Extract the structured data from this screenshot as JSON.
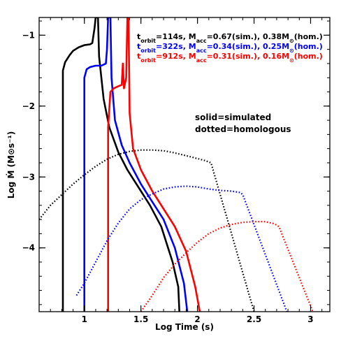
{
  "chart_data": {
    "type": "line",
    "xlabel": "Log Time (s)",
    "ylabel": "Log Ṁ (M⊙s⁻¹)",
    "xlim": [
      0.6,
      3.17
    ],
    "ylim": [
      -4.9,
      -0.75
    ],
    "xticks": [
      {
        "value": 1,
        "label": "1"
      },
      {
        "value": 1.5,
        "label": "1.5"
      },
      {
        "value": 2,
        "label": "2"
      },
      {
        "value": 2.5,
        "label": "2.5"
      },
      {
        "value": 3,
        "label": "3"
      }
    ],
    "yticks": [
      {
        "value": -1,
        "label": "−1"
      },
      {
        "value": -2,
        "label": "−2"
      },
      {
        "value": -3,
        "label": "−3"
      },
      {
        "value": -4,
        "label": "−4"
      }
    ],
    "legend": [
      {
        "text": "torbit=114s, Macc=0.67(sim.), 0.38M⊙(hom.)",
        "color": "#000000"
      },
      {
        "text": "torbit=322s, Macc=0.34(sim.), 0.25M⊙(hom.)",
        "color": "#0000ff"
      },
      {
        "text": "torbit=912s, Macc=0.31(sim.), 0.16M⊙(hom.)",
        "color": "#ff0000"
      }
    ],
    "annotation": [
      "solid=simulated",
      "dotted=homologous"
    ],
    "series": [
      {
        "color": "#000000",
        "style": "solid",
        "points": [
          [
            0.81,
            -4.9
          ],
          [
            0.81,
            -1.5
          ],
          [
            0.83,
            -1.38
          ],
          [
            0.87,
            -1.28
          ],
          [
            0.9,
            -1.22
          ],
          [
            0.95,
            -1.17
          ],
          [
            1.0,
            -1.14
          ],
          [
            1.05,
            -1.13
          ],
          [
            1.07,
            -1.11
          ],
          [
            1.09,
            -0.9
          ],
          [
            1.1,
            -0.75
          ],
          [
            1.12,
            -0.75
          ],
          [
            1.13,
            -1.3
          ],
          [
            1.17,
            -1.9
          ],
          [
            1.22,
            -2.3
          ],
          [
            1.3,
            -2.65
          ],
          [
            1.38,
            -2.9
          ],
          [
            1.5,
            -3.2
          ],
          [
            1.58,
            -3.4
          ],
          [
            1.68,
            -3.7
          ],
          [
            1.78,
            -4.2
          ],
          [
            1.83,
            -4.55
          ],
          [
            1.84,
            -4.9
          ]
        ]
      },
      {
        "color": "#0000ff",
        "style": "solid",
        "points": [
          [
            1.0,
            -4.9
          ],
          [
            1.0,
            -1.6
          ],
          [
            1.02,
            -1.48
          ],
          [
            1.05,
            -1.45
          ],
          [
            1.1,
            -1.43
          ],
          [
            1.15,
            -1.43
          ],
          [
            1.19,
            -1.4
          ],
          [
            1.2,
            -1.2
          ],
          [
            1.21,
            -0.75
          ],
          [
            1.23,
            -0.75
          ],
          [
            1.24,
            -1.6
          ],
          [
            1.27,
            -2.2
          ],
          [
            1.33,
            -2.55
          ],
          [
            1.4,
            -2.8
          ],
          [
            1.5,
            -3.1
          ],
          [
            1.6,
            -3.35
          ],
          [
            1.7,
            -3.6
          ],
          [
            1.8,
            -4.0
          ],
          [
            1.88,
            -4.5
          ],
          [
            1.91,
            -4.9
          ]
        ]
      },
      {
        "color": "#ff0000",
        "style": "solid",
        "points": [
          [
            1.21,
            -4.9
          ],
          [
            1.21,
            -2.3
          ],
          [
            1.23,
            -1.8
          ],
          [
            1.26,
            -1.75
          ],
          [
            1.3,
            -1.72
          ],
          [
            1.33,
            -1.7
          ],
          [
            1.34,
            -1.4
          ],
          [
            1.35,
            -1.75
          ],
          [
            1.37,
            -1.6
          ],
          [
            1.38,
            -0.75
          ],
          [
            1.39,
            -0.75
          ],
          [
            1.4,
            -2.1
          ],
          [
            1.43,
            -2.6
          ],
          [
            1.5,
            -2.9
          ],
          [
            1.6,
            -3.2
          ],
          [
            1.7,
            -3.45
          ],
          [
            1.8,
            -3.7
          ],
          [
            1.9,
            -4.05
          ],
          [
            1.98,
            -4.55
          ],
          [
            2.02,
            -4.9
          ]
        ]
      },
      {
        "color": "#000000",
        "style": "dotted",
        "points": [
          [
            0.6,
            -3.6
          ],
          [
            0.7,
            -3.4
          ],
          [
            0.8,
            -3.25
          ],
          [
            0.9,
            -3.1
          ],
          [
            1.0,
            -2.97
          ],
          [
            1.1,
            -2.85
          ],
          [
            1.2,
            -2.75
          ],
          [
            1.3,
            -2.68
          ],
          [
            1.4,
            -2.64
          ],
          [
            1.5,
            -2.62
          ],
          [
            1.6,
            -2.62
          ],
          [
            1.7,
            -2.63
          ],
          [
            1.8,
            -2.66
          ],
          [
            1.9,
            -2.7
          ],
          [
            2.0,
            -2.74
          ],
          [
            2.07,
            -2.77
          ],
          [
            2.12,
            -2.8
          ],
          [
            2.5,
            -4.9
          ]
        ]
      },
      {
        "color": "#0000ff",
        "style": "dotted",
        "points": [
          [
            0.93,
            -4.67
          ],
          [
            1.0,
            -4.5
          ],
          [
            1.1,
            -4.2
          ],
          [
            1.2,
            -3.9
          ],
          [
            1.3,
            -3.65
          ],
          [
            1.4,
            -3.45
          ],
          [
            1.5,
            -3.32
          ],
          [
            1.6,
            -3.24
          ],
          [
            1.7,
            -3.17
          ],
          [
            1.8,
            -3.14
          ],
          [
            1.9,
            -3.13
          ],
          [
            2.0,
            -3.14
          ],
          [
            2.1,
            -3.17
          ],
          [
            2.2,
            -3.19
          ],
          [
            2.3,
            -3.2
          ],
          [
            2.38,
            -3.22
          ],
          [
            2.4,
            -3.25
          ],
          [
            2.79,
            -4.9
          ]
        ]
      },
      {
        "color": "#ff0000",
        "style": "dotted",
        "points": [
          [
            1.5,
            -4.9
          ],
          [
            1.6,
            -4.67
          ],
          [
            1.7,
            -4.42
          ],
          [
            1.8,
            -4.23
          ],
          [
            1.9,
            -4.07
          ],
          [
            2.0,
            -3.92
          ],
          [
            2.1,
            -3.8
          ],
          [
            2.2,
            -3.72
          ],
          [
            2.3,
            -3.67
          ],
          [
            2.4,
            -3.64
          ],
          [
            2.5,
            -3.63
          ],
          [
            2.6,
            -3.63
          ],
          [
            2.68,
            -3.66
          ],
          [
            2.72,
            -3.7
          ],
          [
            3.02,
            -4.9
          ]
        ]
      }
    ]
  }
}
